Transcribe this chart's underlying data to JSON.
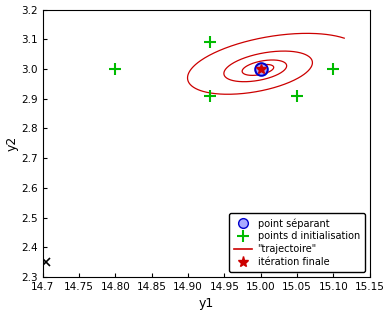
{
  "xlim": [
    14.7,
    15.15
  ],
  "ylim": [
    2.3,
    3.2
  ],
  "xlabel": "y1",
  "ylabel": "y2",
  "xticks": [
    14.7,
    14.75,
    14.8,
    14.85,
    14.9,
    14.95,
    15.0,
    15.05,
    15.1,
    15.15
  ],
  "yticks": [
    2.3,
    2.4,
    2.5,
    2.6,
    2.7,
    2.8,
    2.9,
    3.0,
    3.1,
    3.2
  ],
  "separating_point": [
    15.0,
    3.0
  ],
  "init_points": [
    [
      14.8,
      3.0
    ],
    [
      14.93,
      3.09
    ],
    [
      14.93,
      2.91
    ],
    [
      15.1,
      3.0
    ],
    [
      15.05,
      2.91
    ]
  ],
  "cross_point": [
    14.705,
    2.352
  ],
  "final_iter_point": [
    15.0,
    3.0
  ],
  "trajectory_color": "#cc0000",
  "init_color": "#00bb00",
  "sep_color_face": "#aaaaff",
  "sep_color_edge": "#0000cc",
  "final_color": "#cc0000",
  "background": "#ffffff",
  "legend_labels": [
    "point séparant",
    "points d initialisation",
    "\"trajectoire\"",
    "itération finale"
  ]
}
